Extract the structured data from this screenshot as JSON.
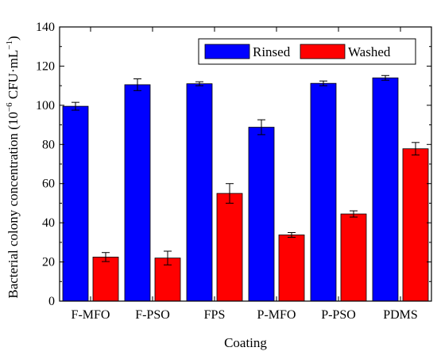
{
  "chart_data": {
    "type": "bar",
    "categories": [
      "F-MFO",
      "F-PSO",
      "FPS",
      "P-MFO",
      "P-PSO",
      "PDMS"
    ],
    "series": [
      {
        "name": "Rinsed",
        "color": "#0000ff",
        "values": [
          99.5,
          110.5,
          111.0,
          88.8,
          111.2,
          114.0
        ],
        "errors": [
          2.0,
          3.0,
          1.0,
          3.8,
          1.2,
          1.2
        ]
      },
      {
        "name": "Washed",
        "color": "#ff0000",
        "values": [
          22.5,
          22.0,
          55.0,
          33.8,
          44.5,
          77.8
        ],
        "errors": [
          2.3,
          3.5,
          5.0,
          1.2,
          1.6,
          3.2
        ]
      }
    ],
    "xlabel": "Coating",
    "ylabel_main": "Bacterial colony concentration (10",
    "ylabel_sup": "−6",
    "ylabel_tail": " CFU·mL",
    "ylabel_sup2": "−1",
    "ylabel_close": ")",
    "ylim": [
      0,
      140
    ],
    "yticks": [
      "0",
      "20",
      "40",
      "60",
      "80",
      "100",
      "120",
      "140"
    ],
    "legend_position": "top-right",
    "grid": false
  }
}
